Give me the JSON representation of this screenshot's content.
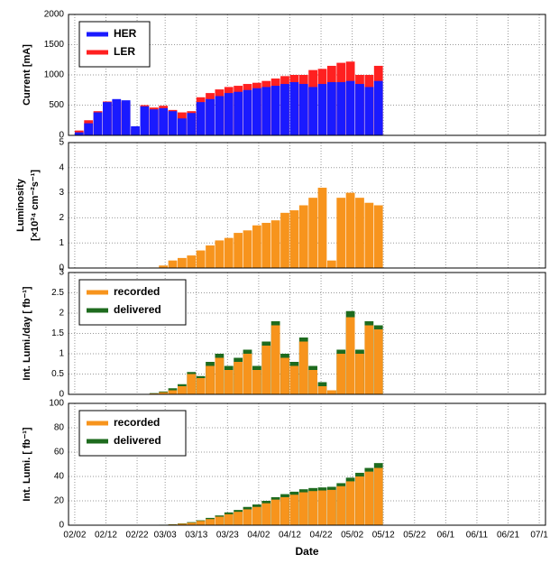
{
  "chart_data": [
    {
      "type": "bar",
      "ylabel": "Current [mA]",
      "legend": "upper left",
      "x": [
        "02/02",
        "02/05",
        "02/08",
        "02/11",
        "02/14",
        "02/17",
        "02/20",
        "02/23",
        "02/26",
        "03/01",
        "03/04",
        "03/07",
        "03/10",
        "03/13",
        "03/16",
        "03/19",
        "03/22",
        "03/25",
        "03/28",
        "03/31",
        "04/03",
        "04/06",
        "04/09",
        "04/12",
        "04/15",
        "04/18",
        "04/21",
        "04/24",
        "04/27",
        "04/30",
        "05/03",
        "05/06",
        "05/09"
      ],
      "series": [
        {
          "name": "HER",
          "color": "#1a1aff",
          "values": [
            50,
            200,
            380,
            550,
            600,
            580,
            150,
            480,
            430,
            450,
            400,
            280,
            370,
            550,
            600,
            650,
            700,
            720,
            750,
            780,
            800,
            820,
            850,
            880,
            850,
            800,
            850,
            880,
            880,
            900,
            850,
            800,
            900
          ]
        },
        {
          "name": "LER",
          "color": "#ff2020",
          "values": [
            80,
            250,
            400,
            560,
            580,
            550,
            100,
            500,
            460,
            490,
            420,
            380,
            400,
            630,
            700,
            760,
            800,
            820,
            850,
            870,
            900,
            940,
            980,
            1000,
            1000,
            1080,
            1100,
            1150,
            1200,
            1220,
            1000,
            1000,
            1150
          ]
        }
      ],
      "ylim": [
        0,
        2000
      ],
      "yticks": [
        0,
        500,
        1000,
        1500,
        2000
      ],
      "grid": true
    },
    {
      "type": "bar",
      "ylabel": [
        "Luminosity",
        "[×10³⁴ cm⁻²s⁻¹]"
      ],
      "color": "#f7941d",
      "x": [
        "02/02",
        "02/05",
        "02/08",
        "02/11",
        "02/14",
        "02/17",
        "02/20",
        "02/23",
        "02/26",
        "03/01",
        "03/04",
        "03/07",
        "03/10",
        "03/13",
        "03/16",
        "03/19",
        "03/22",
        "03/25",
        "03/28",
        "03/31",
        "04/03",
        "04/06",
        "04/09",
        "04/12",
        "04/15",
        "04/18",
        "04/21",
        "04/24",
        "04/27",
        "04/30",
        "05/03",
        "05/06",
        "05/09"
      ],
      "values": [
        0,
        0,
        0,
        0,
        0,
        0,
        0,
        0,
        0.02,
        0.1,
        0.3,
        0.4,
        0.5,
        0.7,
        0.9,
        1.1,
        1.2,
        1.4,
        1.5,
        1.7,
        1.8,
        1.9,
        2.2,
        2.3,
        2.5,
        2.8,
        3.2,
        0.3,
        2.8,
        3.0,
        2.8,
        2.6,
        2.5
      ],
      "ylim": [
        0,
        5
      ],
      "yticks": [
        0,
        1,
        2,
        3,
        4,
        5
      ],
      "grid": true
    },
    {
      "type": "bar",
      "ylabel": "Int. Lumi./day [ fb⁻¹]",
      "legend": "upper left",
      "x": [
        "02/02",
        "02/05",
        "02/08",
        "02/11",
        "02/14",
        "02/17",
        "02/20",
        "02/23",
        "02/26",
        "03/01",
        "03/04",
        "03/07",
        "03/10",
        "03/13",
        "03/16",
        "03/19",
        "03/22",
        "03/25",
        "03/28",
        "03/31",
        "04/03",
        "04/06",
        "04/09",
        "04/12",
        "04/15",
        "04/18",
        "04/21",
        "04/24",
        "04/27",
        "04/30",
        "05/03",
        "05/06",
        "05/09"
      ],
      "series": [
        {
          "name": "recorded",
          "color": "#f7941d",
          "values": [
            0,
            0,
            0,
            0,
            0,
            0,
            0,
            0,
            0.02,
            0.05,
            0.1,
            0.2,
            0.5,
            0.4,
            0.7,
            0.9,
            0.6,
            0.8,
            1.0,
            0.6,
            1.2,
            1.7,
            0.9,
            0.7,
            1.3,
            0.6,
            0.2,
            0.1,
            1.0,
            1.9,
            1.0,
            1.7,
            1.6
          ]
        },
        {
          "name": "delivered",
          "color": "#1e6b1e",
          "values": [
            0,
            0,
            0,
            0,
            0,
            0,
            0,
            0,
            0.03,
            0.07,
            0.15,
            0.25,
            0.55,
            0.45,
            0.8,
            1.0,
            0.7,
            0.9,
            1.1,
            0.7,
            1.3,
            1.8,
            1.0,
            0.8,
            1.4,
            0.7,
            0.3,
            0.1,
            1.1,
            2.05,
            1.1,
            1.8,
            1.7
          ]
        }
      ],
      "ylim": [
        0,
        3
      ],
      "yticks": [
        0,
        0.5,
        1,
        1.5,
        2,
        2.5,
        3
      ],
      "grid": true
    },
    {
      "type": "bar",
      "ylabel": "Int. Lumi. [ fb⁻¹]",
      "xlabel": "Date",
      "legend": "upper left",
      "x": [
        "02/02",
        "02/05",
        "02/08",
        "02/11",
        "02/14",
        "02/17",
        "02/20",
        "02/23",
        "02/26",
        "03/01",
        "03/04",
        "03/07",
        "03/10",
        "03/13",
        "03/16",
        "03/19",
        "03/22",
        "03/25",
        "03/28",
        "03/31",
        "04/03",
        "04/06",
        "04/09",
        "04/12",
        "04/15",
        "04/18",
        "04/21",
        "04/24",
        "04/27",
        "04/30",
        "05/03",
        "05/06",
        "05/09"
      ],
      "series": [
        {
          "name": "recorded",
          "color": "#f7941d",
          "values": [
            0,
            0,
            0,
            0,
            0,
            0,
            0,
            0,
            0.1,
            0.3,
            0.6,
            1.2,
            2,
            3.5,
            5,
            7,
            9,
            11,
            13,
            15,
            18,
            21,
            23,
            25,
            27,
            28,
            28.5,
            29,
            32,
            36,
            40,
            44,
            47
          ]
        },
        {
          "name": "delivered",
          "color": "#1e6b1e",
          "values": [
            0,
            0,
            0,
            0,
            0,
            0,
            0,
            0,
            0.1,
            0.4,
            0.8,
            1.5,
            2.5,
            4,
            6,
            8,
            10.5,
            12.5,
            15,
            17,
            20,
            23,
            25.5,
            27.5,
            29.5,
            30.5,
            31,
            31.5,
            34.5,
            39,
            43,
            47,
            51
          ]
        }
      ],
      "ylim": [
        0,
        100
      ],
      "yticks": [
        0,
        20,
        40,
        60,
        80,
        100
      ],
      "xlim": [
        "01/31",
        "07/03"
      ],
      "xticks": [
        "02/02",
        "02/12",
        "02/22",
        "03/03",
        "03/13",
        "03/23",
        "04/02",
        "04/12",
        "04/22",
        "05/02",
        "05/12",
        "05/22",
        "06/1",
        "06/11",
        "06/21",
        "07/1"
      ],
      "grid": true
    }
  ]
}
